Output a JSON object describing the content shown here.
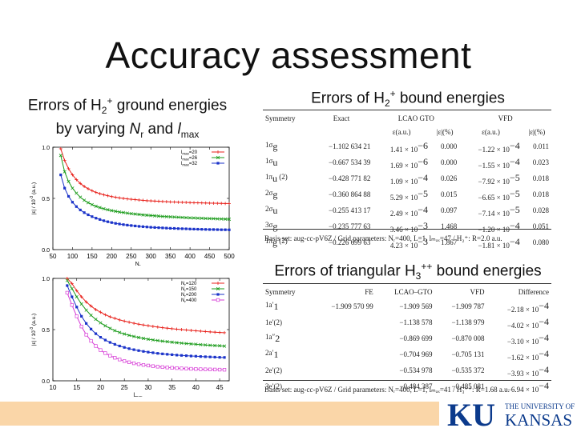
{
  "slide": {
    "title": "Accuracy assessment",
    "left_heading_l1": "Errors of H",
    "left_heading_l1_sub": "2",
    "left_heading_l1_sup": "+",
    "left_heading_l1_end": " ground energies",
    "left_heading_l2a": "by varying ",
    "left_heading_l2b": "N",
    "left_heading_l2c": "r",
    "left_heading_l2d": " and ",
    "left_heading_l2e": "l",
    "left_heading_l2f": "max",
    "table1_heading_a": "Errors of H",
    "table1_heading_sub": "2",
    "table1_heading_sup": "+",
    "table1_heading_b": " bound energies",
    "table2_heading_a": "Errors of triangular H",
    "table2_heading_sub": "3",
    "table2_heading_sup": "++",
    "table2_heading_b": " bound energies"
  },
  "chart_data": [
    {
      "type": "line",
      "xlabel": "N",
      "xlabel_sub": "r",
      "ylabel": "|ε| / 10",
      "ylabel_sup": "-3",
      "ylabel_unit": " (a.u.)",
      "xlim": [
        50,
        500
      ],
      "ylim": [
        0.0,
        1.0
      ],
      "xticks": [
        50,
        100,
        150,
        200,
        250,
        300,
        350,
        400,
        450,
        500
      ],
      "yticks": [
        "0.0",
        "0.5",
        "1.0"
      ],
      "legend_pos": "top-right",
      "series": [
        {
          "name": "l",
          "name_sub": "max",
          "name_val": "=20",
          "color": "#e8221c",
          "marker": "plus",
          "x": [
            70,
            80,
            90,
            100,
            110,
            120,
            130,
            140,
            150,
            160,
            170,
            180,
            190,
            200,
            210,
            220,
            230,
            240,
            250,
            260,
            270,
            280,
            290,
            300,
            310,
            320,
            330,
            340,
            350,
            360,
            370,
            380,
            390,
            400,
            410,
            420,
            430,
            440,
            450,
            460,
            470,
            480,
            490,
            500
          ],
          "y": [
            0.985,
            0.87,
            0.79,
            0.73,
            0.683,
            0.646,
            0.617,
            0.594,
            0.575,
            0.559,
            0.546,
            0.535,
            0.526,
            0.518,
            0.511,
            0.505,
            0.5,
            0.495,
            0.491,
            0.488,
            0.484,
            0.481,
            0.478,
            0.476,
            0.474,
            0.472,
            0.47,
            0.468,
            0.466,
            0.465,
            0.463,
            0.462,
            0.461,
            0.459,
            0.458,
            0.457,
            0.456,
            0.455,
            0.454,
            0.453,
            0.452,
            0.451,
            0.45,
            0.45
          ]
        },
        {
          "name": "l",
          "name_sub": "max",
          "name_val": "=26",
          "color": "#1a9b1a",
          "marker": "x",
          "x": [
            70,
            80,
            90,
            100,
            110,
            120,
            130,
            140,
            150,
            160,
            170,
            180,
            190,
            200,
            210,
            220,
            230,
            240,
            250,
            260,
            270,
            280,
            290,
            300,
            310,
            320,
            330,
            340,
            350,
            360,
            370,
            380,
            390,
            400,
            410,
            420,
            430,
            440,
            450,
            460,
            470,
            480,
            490,
            500
          ],
          "y": [
            0.92,
            0.76,
            0.665,
            0.6,
            0.551,
            0.512,
            0.482,
            0.458,
            0.439,
            0.423,
            0.41,
            0.399,
            0.389,
            0.381,
            0.374,
            0.367,
            0.362,
            0.356,
            0.351,
            0.347,
            0.343,
            0.339,
            0.336,
            0.333,
            0.33,
            0.327,
            0.324,
            0.322,
            0.32,
            0.318,
            0.316,
            0.314,
            0.312,
            0.31,
            0.309,
            0.307,
            0.306,
            0.304,
            0.303,
            0.302,
            0.3,
            0.299,
            0.298,
            0.297
          ]
        },
        {
          "name": "l",
          "name_sub": "max",
          "name_val": "=32",
          "color": "#1b33c9",
          "marker": "square",
          "x": [
            70,
            80,
            90,
            100,
            110,
            120,
            130,
            140,
            150,
            160,
            170,
            180,
            190,
            200,
            210,
            220,
            230,
            240,
            250,
            260,
            270,
            280,
            290,
            300,
            310,
            320,
            330,
            340,
            350,
            360,
            370,
            380,
            390,
            400,
            410,
            420,
            430,
            440,
            450,
            460,
            470,
            480,
            490,
            500
          ],
          "y": [
            0.73,
            0.6,
            0.52,
            0.463,
            0.42,
            0.387,
            0.361,
            0.34,
            0.322,
            0.307,
            0.294,
            0.282,
            0.272,
            0.264,
            0.256,
            0.25,
            0.244,
            0.239,
            0.235,
            0.231,
            0.227,
            0.224,
            0.221,
            0.218,
            0.216,
            0.214,
            0.212,
            0.21,
            0.208,
            0.207,
            0.205,
            0.204,
            0.203,
            0.201,
            0.2,
            0.199,
            0.198,
            0.197,
            0.196,
            0.196,
            0.195,
            0.194,
            0.194,
            0.193
          ]
        }
      ]
    },
    {
      "type": "line",
      "xlabel": "l",
      "xlabel_sub": "max",
      "ylabel": "|ε| / 10",
      "ylabel_sup": "-3",
      "ylabel_unit": " (a.u.)",
      "xlim": [
        10,
        47
      ],
      "ylim": [
        0.0,
        1.0
      ],
      "xticks": [
        10,
        15,
        20,
        25,
        30,
        35,
        40,
        45
      ],
      "yticks": [
        "0.0",
        "0.5",
        "1.0"
      ],
      "legend_pos": "top-right",
      "series": [
        {
          "name": "N",
          "name_sub": "r",
          "name_val": "=120",
          "color": "#e8221c",
          "marker": "plus",
          "x": [
            13,
            14,
            15,
            16,
            17,
            18,
            19,
            20,
            21,
            22,
            23,
            24,
            25,
            26,
            27,
            28,
            29,
            30,
            31,
            32,
            33,
            34,
            35,
            36,
            37,
            38,
            39,
            40,
            41,
            42,
            43,
            44,
            45,
            46
          ],
          "y": [
            1.0,
            0.95,
            0.88,
            0.82,
            0.77,
            0.73,
            0.695,
            0.67,
            0.645,
            0.625,
            0.61,
            0.595,
            0.583,
            0.572,
            0.562,
            0.553,
            0.545,
            0.538,
            0.531,
            0.525,
            0.519,
            0.514,
            0.509,
            0.504,
            0.5,
            0.496,
            0.492,
            0.488,
            0.485,
            0.481,
            0.478,
            0.475,
            0.472,
            0.47
          ]
        },
        {
          "name": "N",
          "name_sub": "r",
          "name_val": "=150",
          "color": "#1a9b1a",
          "marker": "x",
          "x": [
            13,
            14,
            15,
            16,
            17,
            18,
            19,
            20,
            21,
            22,
            23,
            24,
            25,
            26,
            27,
            28,
            29,
            30,
            31,
            32,
            33,
            34,
            35,
            36,
            37,
            38,
            39,
            40,
            41,
            42,
            43,
            44,
            45,
            46
          ],
          "y": [
            0.98,
            0.9,
            0.82,
            0.75,
            0.69,
            0.64,
            0.6,
            0.566,
            0.537,
            0.512,
            0.49,
            0.472,
            0.457,
            0.444,
            0.433,
            0.423,
            0.414,
            0.406,
            0.399,
            0.393,
            0.387,
            0.382,
            0.377,
            0.372,
            0.368,
            0.364,
            0.36,
            0.357,
            0.353,
            0.35,
            0.347,
            0.344,
            0.342,
            0.339
          ]
        },
        {
          "name": "N",
          "name_sub": "r",
          "name_val": "=200",
          "color": "#1b33c9",
          "marker": "square",
          "x": [
            13,
            14,
            15,
            16,
            17,
            18,
            19,
            20,
            21,
            22,
            23,
            24,
            25,
            26,
            27,
            28,
            29,
            30,
            31,
            32,
            33,
            34,
            35,
            36,
            37,
            38,
            39,
            40,
            41,
            42,
            43,
            44,
            45,
            46
          ],
          "y": [
            0.93,
            0.82,
            0.72,
            0.63,
            0.56,
            0.505,
            0.46,
            0.425,
            0.398,
            0.375,
            0.356,
            0.34,
            0.326,
            0.314,
            0.304,
            0.295,
            0.287,
            0.28,
            0.274,
            0.268,
            0.263,
            0.259,
            0.255,
            0.251,
            0.248,
            0.245,
            0.242,
            0.24,
            0.237,
            0.235,
            0.233,
            0.231,
            0.229,
            0.228
          ]
        },
        {
          "name": "N",
          "name_sub": "r",
          "name_val": "=400",
          "color": "#d63bd6",
          "marker": "square-open",
          "x": [
            13,
            14,
            15,
            16,
            17,
            18,
            19,
            20,
            21,
            22,
            23,
            24,
            25,
            26,
            27,
            28,
            29,
            30,
            31,
            32,
            33,
            34,
            35,
            36,
            37,
            38,
            39,
            40,
            41,
            42,
            43,
            44,
            45,
            46
          ],
          "y": [
            0.86,
            0.74,
            0.63,
            0.53,
            0.45,
            0.39,
            0.34,
            0.3,
            0.27,
            0.245,
            0.225,
            0.208,
            0.193,
            0.181,
            0.171,
            0.162,
            0.155,
            0.149,
            0.143,
            0.138,
            0.134,
            0.13,
            0.127,
            0.124,
            0.121,
            0.119,
            0.117,
            0.115,
            0.113,
            0.112,
            0.111,
            0.11,
            0.109,
            0.108
          ]
        }
      ]
    }
  ],
  "table1": {
    "headers": [
      "Symmetry",
      "Exact",
      "LCAO  GTO",
      "VFD"
    ],
    "subheaders": [
      "ε(a.u.)",
      "|ε|(%)",
      "ε(a.u.)",
      "|ε|(%)"
    ],
    "rows": [
      {
        "sym": "1σ",
        "sym_sub": "g",
        "sym_tail": "",
        "exact": "−1.102 634 21",
        "lcao_e": "1.41 × 10",
        "lcao_exp": "−6",
        "lcao_p": "0.000",
        "vfd_e": "−1.22 × 10",
        "vfd_exp": "−4",
        "vfd_p": "0.011"
      },
      {
        "sym": "1σ",
        "sym_sub": "u",
        "sym_tail": "",
        "exact": "−0.667 534 39",
        "lcao_e": "1.69 × 10",
        "lcao_exp": "−6",
        "lcao_p": "0.000",
        "vfd_e": "−1.55 × 10",
        "vfd_exp": "−4",
        "vfd_p": "0.023"
      },
      {
        "sym": "1π",
        "sym_sub": "u",
        "sym_tail": " (2)",
        "exact": "−0.428 771 82",
        "lcao_e": "1.09 × 10",
        "lcao_exp": "−4",
        "lcao_p": "0.026",
        "vfd_e": "−7.92 × 10",
        "vfd_exp": "−5",
        "vfd_p": "0.018"
      },
      {
        "sym": "2σ",
        "sym_sub": "g",
        "sym_tail": "",
        "exact": "−0.360 864 88",
        "lcao_e": "5.29 × 10",
        "lcao_exp": "−5",
        "lcao_p": "0.015",
        "vfd_e": "−6.65 × 10",
        "vfd_exp": "−5",
        "vfd_p": "0.018"
      },
      {
        "sym": "2σ",
        "sym_sub": "u",
        "sym_tail": "",
        "exact": "−0.255 413 17",
        "lcao_e": "2.49 × 10",
        "lcao_exp": "−4",
        "lcao_p": "0.097",
        "vfd_e": "−7.14 × 10",
        "vfd_exp": "−5",
        "vfd_p": "0.028"
      },
      {
        "sym": "3σ",
        "sym_sub": "g",
        "sym_tail": "",
        "exact": "−0.235 777 63",
        "lcao_e": "3.46 × 10",
        "lcao_exp": "−3",
        "lcao_p": "1.468",
        "vfd_e": "−1.20 × 10",
        "vfd_exp": "−4",
        "vfd_p": "0.051"
      },
      {
        "sym": "1π",
        "sym_sub": "g",
        "sym_tail": " (2)",
        "exact": "−0.226 699 63",
        "lcao_e": "4.23 × 10",
        "lcao_exp": "−3",
        "lcao_p": "1.867",
        "vfd_e": "−1.81 × 10",
        "vfd_exp": "−4",
        "vfd_p": "0.080"
      }
    ],
    "note": "Basis set: aug-cc-pV6Z / Grid parameters: Nᵣ=400, L=1, lₘₐₓ=47 / H₂⁺: R=2.0 a.u."
  },
  "table2": {
    "headers": [
      "Symmetry",
      "FE",
      "LCAO–GTO",
      "VFD",
      "Difference"
    ],
    "rows": [
      {
        "sym": "1a′",
        "sym_sub": "1",
        "fe": "−1.909 570 99",
        "lcao": "−1.909 569",
        "vfd": "−1.909 787",
        "diff": "−2.18 × 10",
        "diff_exp": "−4"
      },
      {
        "sym": "1e′(2)",
        "sym_sub": "",
        "fe": "",
        "lcao": "−1.138 578",
        "vfd": "−1.138 979",
        "diff": "−4.02 × 10",
        "diff_exp": "−4"
      },
      {
        "sym": "1a″",
        "sym_sub": "2",
        "fe": "",
        "lcao": "−0.869 699",
        "vfd": "−0.870 008",
        "diff": "−3.10 × 10",
        "diff_exp": "−4"
      },
      {
        "sym": "2a′",
        "sym_sub": "1",
        "fe": "",
        "lcao": "−0.704 969",
        "vfd": "−0.705 131",
        "diff": "−1.62 × 10",
        "diff_exp": "−4"
      },
      {
        "sym": "2e′(2)",
        "sym_sub": "",
        "fe": "",
        "lcao": "−0.534 978",
        "vfd": "−0.535 372",
        "diff": "−3.93 × 10",
        "diff_exp": "−4"
      },
      {
        "sym": "3e′(2)",
        "sym_sub": "",
        "fe": "",
        "lcao": "−0.484 387",
        "vfd": "−0.485 081",
        "diff": "−6.94 × 10",
        "diff_exp": "−4"
      }
    ],
    "note": "Basis set: aug-cc-pV6Z / Grid parameters: Nᵣ=400, L=1, lₘₐₓ=41 / H₃⁺⁺: R=1.68 a.u."
  },
  "logo": {
    "mark": "KU",
    "line1": "THE UNIVERSITY OF",
    "line2": "KANSAS",
    "color": "#0b3a8c"
  },
  "colors": {
    "footer_band": "#fad6a8"
  }
}
